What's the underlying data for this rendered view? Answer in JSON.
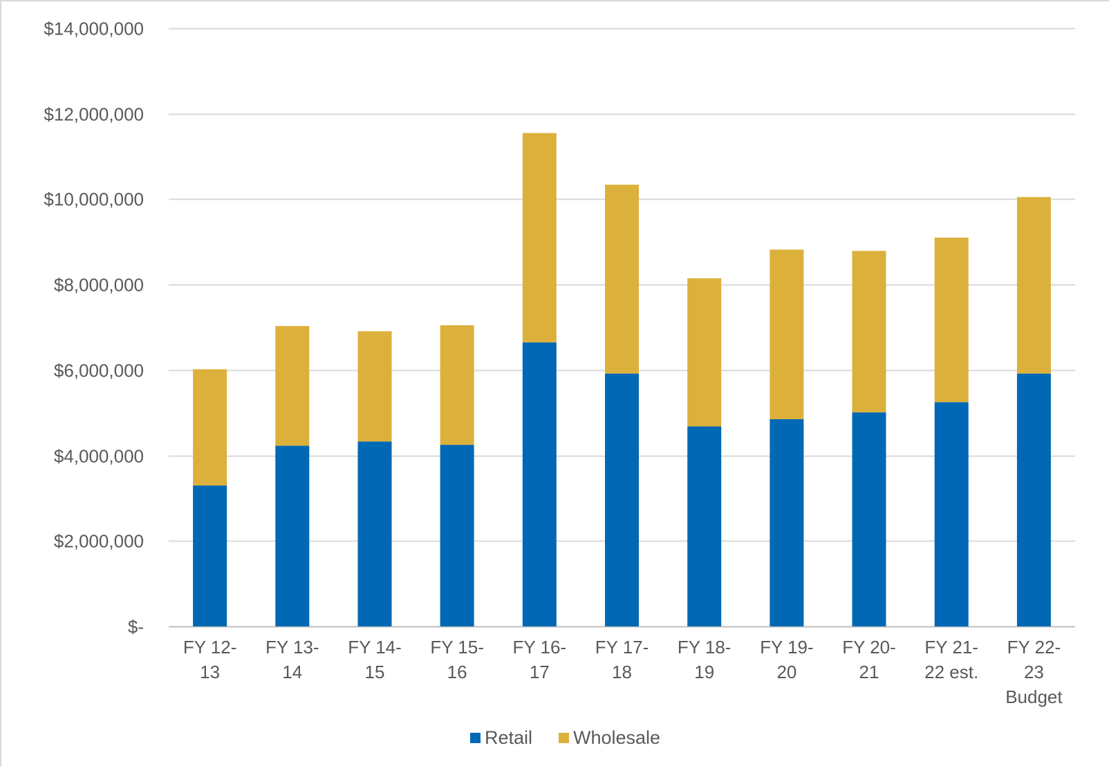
{
  "chart_data": {
    "type": "bar",
    "stacked": true,
    "title": "",
    "xlabel": "",
    "ylabel": "",
    "ylim": [
      0,
      14000000
    ],
    "y_tick_values": [
      0,
      2000000,
      4000000,
      6000000,
      8000000,
      10000000,
      12000000,
      14000000
    ],
    "y_tick_labels": [
      "$-",
      "$2,000,000",
      "$4,000,000",
      "$6,000,000",
      "$8,000,000",
      "$10,000,000",
      "$12,000,000",
      "$14,000,000"
    ],
    "grid": true,
    "legend_position": "bottom",
    "categories": [
      [
        "FY 12-",
        "13"
      ],
      [
        "FY 13-",
        "14"
      ],
      [
        "FY 14-",
        "15"
      ],
      [
        "FY 15-",
        "16"
      ],
      [
        "FY 16-",
        "17"
      ],
      [
        "FY 17-",
        "18"
      ],
      [
        "FY 18-",
        "19"
      ],
      [
        "FY 19-",
        "20"
      ],
      [
        "FY 20-",
        "21"
      ],
      [
        "FY 21-",
        "22 est."
      ],
      [
        "FY 22-",
        "23",
        "Budget"
      ]
    ],
    "series": [
      {
        "name": "Retail",
        "color": "#0068b4",
        "values": [
          3300000,
          4230000,
          4330000,
          4250000,
          6650000,
          5920000,
          4680000,
          4850000,
          5010000,
          5250000,
          5920000
        ]
      },
      {
        "name": "Wholesale",
        "color": "#dcb13b",
        "values": [
          2720000,
          2800000,
          2580000,
          2800000,
          4900000,
          4420000,
          3470000,
          3970000,
          3780000,
          3850000,
          4130000
        ]
      }
    ]
  }
}
